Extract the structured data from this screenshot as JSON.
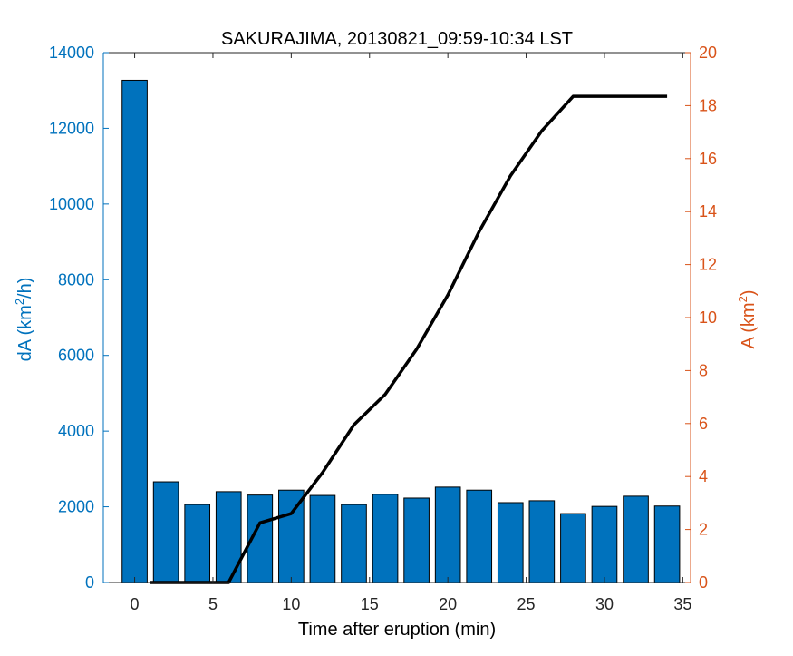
{
  "chart_data": {
    "type": "bar",
    "title": "SAKURAJIMA, 20130821_09:59-10:34 LST",
    "xlabel": "Time after eruption (min)",
    "ylabel_left": {
      "base": "dA (km",
      "sup": "2",
      "tail": "/h)"
    },
    "ylabel_right": {
      "base": "A (km",
      "sup": "2",
      "tail": ")"
    },
    "xlim": [
      -2,
      35.5
    ],
    "ylim_left": [
      0,
      14000
    ],
    "ylim_right": [
      0,
      20
    ],
    "xticks": [
      0,
      5,
      10,
      15,
      20,
      25,
      30,
      35
    ],
    "yticks_left": [
      0,
      2000,
      4000,
      6000,
      8000,
      10000,
      12000,
      14000
    ],
    "yticks_right": [
      0,
      2,
      4,
      6,
      8,
      10,
      12,
      14,
      16,
      18,
      20
    ],
    "grid": false,
    "colors": {
      "bar": "#0072BD",
      "left_axis": "#0072BD",
      "right_axis": "#D95319",
      "line": "#000000"
    },
    "bar_width_min": 1.6,
    "series": [
      {
        "type": "bar",
        "axis": "left",
        "x": [
          0,
          2,
          4,
          6,
          8,
          10,
          12,
          14,
          16,
          18,
          20,
          22,
          24,
          26,
          28,
          30,
          32,
          34
        ],
        "values": [
          13270,
          2660,
          2060,
          2400,
          2310,
          2440,
          2300,
          2060,
          2330,
          2230,
          2520,
          2440,
          2110,
          2160,
          1820,
          2010,
          2280,
          2020
        ]
      },
      {
        "type": "line",
        "axis": "right",
        "x": [
          1,
          2,
          4,
          6,
          8,
          10,
          12,
          14,
          16,
          18,
          20,
          22,
          24,
          26,
          28,
          30,
          32,
          34
        ],
        "values": [
          0,
          0,
          0,
          0,
          2.25,
          2.6,
          4.15,
          5.95,
          7.1,
          8.8,
          10.85,
          13.25,
          15.35,
          17.05,
          18.35,
          18.35,
          18.35,
          18.35
        ]
      }
    ]
  }
}
